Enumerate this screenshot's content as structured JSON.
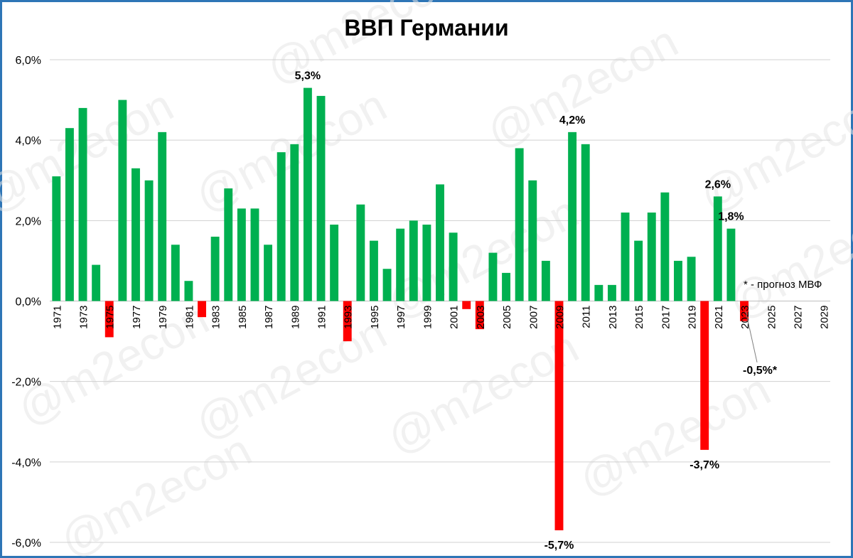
{
  "chart_data": {
    "type": "bar",
    "title": "ВВП Германии",
    "watermark": "@m2econ",
    "ylim": [
      -6.0,
      6.0
    ],
    "yticks": [
      "6,0%",
      "4,0%",
      "2,0%",
      "0,0%",
      "-2,0%",
      "-4,0%",
      "-6,0%"
    ],
    "ytick_values": [
      6,
      4,
      2,
      0,
      -2,
      -4,
      -6
    ],
    "grid": true,
    "positive_color": "#00B050",
    "negative_color": "#FF0000",
    "x": [
      1971,
      1972,
      1973,
      1974,
      1975,
      1976,
      1977,
      1978,
      1979,
      1980,
      1981,
      1982,
      1983,
      1984,
      1985,
      1986,
      1987,
      1988,
      1989,
      1990,
      1991,
      1992,
      1993,
      1994,
      1995,
      1996,
      1997,
      1998,
      1999,
      2000,
      2001,
      2002,
      2003,
      2004,
      2005,
      2006,
      2007,
      2008,
      2009,
      2010,
      2011,
      2012,
      2013,
      2014,
      2015,
      2016,
      2017,
      2018,
      2019,
      2020,
      2021,
      2022,
      2023,
      2024,
      2025,
      2026,
      2027,
      2028,
      2029
    ],
    "x_labels": [
      "1971",
      "",
      "1973",
      "",
      "1975",
      "",
      "1977",
      "",
      "1979",
      "",
      "1981",
      "",
      "1983",
      "",
      "1985",
      "",
      "1987",
      "",
      "1989",
      "",
      "1991",
      "",
      "1993",
      "",
      "1995",
      "",
      "1997",
      "",
      "1999",
      "",
      "2001",
      "",
      "2003",
      "",
      "2005",
      "",
      "2007",
      "",
      "2009",
      "",
      "2011",
      "",
      "2013",
      "",
      "2015",
      "",
      "2017",
      "",
      "2019",
      "",
      "2021",
      "",
      "2023",
      "",
      "2025",
      "",
      "2027",
      "",
      "2029"
    ],
    "values": [
      3.1,
      4.3,
      4.8,
      0.9,
      -0.9,
      5.0,
      3.3,
      3.0,
      4.2,
      1.4,
      0.5,
      -0.4,
      1.6,
      2.8,
      2.3,
      2.3,
      1.4,
      3.7,
      3.9,
      5.3,
      5.1,
      1.9,
      -1.0,
      2.4,
      1.5,
      0.8,
      1.8,
      2.0,
      1.9,
      2.9,
      1.7,
      -0.2,
      -0.7,
      1.2,
      0.7,
      3.8,
      3.0,
      1.0,
      -5.7,
      4.2,
      3.9,
      0.4,
      0.4,
      2.2,
      1.5,
      2.2,
      2.7,
      1.0,
      1.1,
      -3.7,
      2.6,
      1.8,
      -0.5,
      null,
      null,
      null,
      null,
      null,
      null
    ],
    "data_labels": [
      {
        "year": 1990,
        "text": "5,3%"
      },
      {
        "year": 2010,
        "text": "4,2%"
      },
      {
        "year": 2021,
        "text": "2,6%"
      },
      {
        "year": 2022,
        "text": "1,8%"
      },
      {
        "year": 2009,
        "text": "-5,7%"
      },
      {
        "year": 2020,
        "text": "-3,7%"
      },
      {
        "year": 2023,
        "text": "-0,5%*"
      }
    ],
    "note": "* - прогноз МВФ"
  }
}
